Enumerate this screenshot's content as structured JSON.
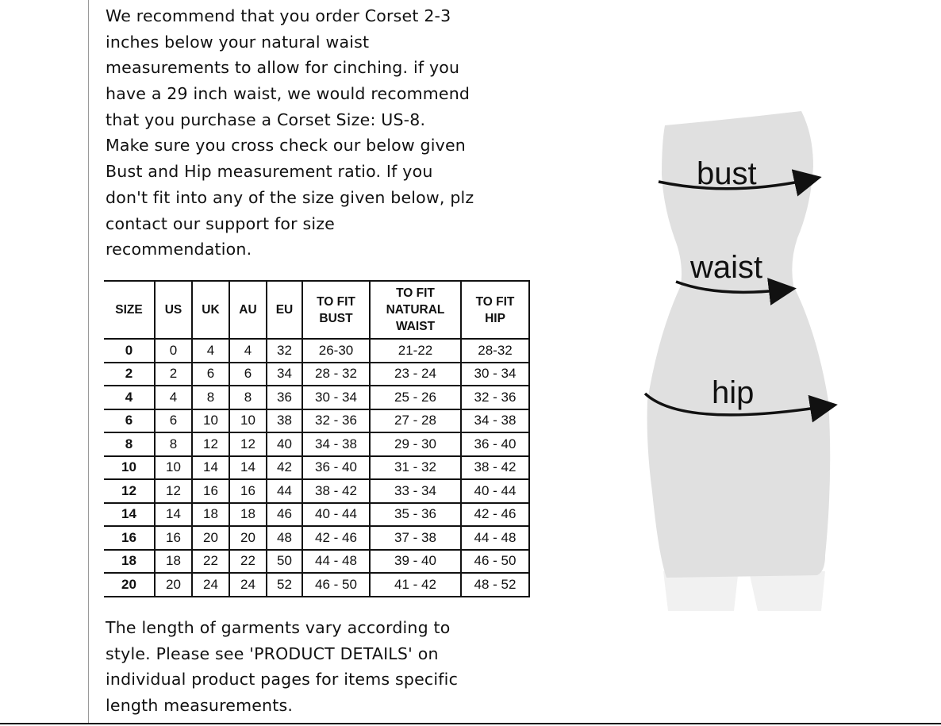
{
  "intro_lines": [
    "We recommend that you order Corset 2-3",
    "inches below your natural waist",
    "measurements to allow for cinching. if you",
    "have a 29 inch waist, we would recommend",
    "that you purchase a Corset Size: US-8.",
    "Make sure you cross check our below given",
    "Bust and Hip measurement ratio. If you",
    "don't fit into any of the size given below, plz",
    "contact our support for size",
    "recommendation."
  ],
  "table": {
    "headers": [
      "SIZE",
      "US",
      "UK",
      "AU",
      "EU",
      "TO FIT BUST",
      "TO FIT NATURAL WAIST",
      "TO FIT HIP"
    ],
    "rows": [
      [
        "0",
        "0",
        "4",
        "4",
        "32",
        "26-30",
        "21-22",
        "28-32"
      ],
      [
        "2",
        "2",
        "6",
        "6",
        "34",
        "28 - 32",
        "23 - 24",
        "30 - 34"
      ],
      [
        "4",
        "4",
        "8",
        "8",
        "36",
        "30 - 34",
        "25 - 26",
        "32 - 36"
      ],
      [
        "6",
        "6",
        "10",
        "10",
        "38",
        "32 - 36",
        "27 - 28",
        "34 - 38"
      ],
      [
        "8",
        "8",
        "12",
        "12",
        "40",
        "34 - 38",
        "29 - 30",
        "36 - 40"
      ],
      [
        "10",
        "10",
        "14",
        "14",
        "42",
        "36 - 40",
        "31 - 32",
        "38 - 42"
      ],
      [
        "12",
        "12",
        "16",
        "16",
        "44",
        "38 - 42",
        "33 - 34",
        "40 - 44"
      ],
      [
        "14",
        "14",
        "18",
        "18",
        "46",
        "40 - 44",
        "35 - 36",
        "42 - 46"
      ],
      [
        "16",
        "16",
        "20",
        "20",
        "48",
        "42 - 46",
        "37 - 38",
        "44 - 48"
      ],
      [
        "18",
        "18",
        "22",
        "22",
        "50",
        "44 - 48",
        "39 - 40",
        "46 - 50"
      ],
      [
        "20",
        "20",
        "24",
        "24",
        "52",
        "46 - 50",
        "41 - 42",
        "48 - 52"
      ]
    ]
  },
  "outro_lines": [
    "The length of garments vary according to",
    "style. Please see 'PRODUCT DETAILS'  on",
    "individual product pages for items specific",
    "length measurements."
  ],
  "figure": {
    "labels": {
      "bust": "bust",
      "waist": "waist",
      "hip": "hip"
    },
    "body_color": "#e0e0e0"
  }
}
